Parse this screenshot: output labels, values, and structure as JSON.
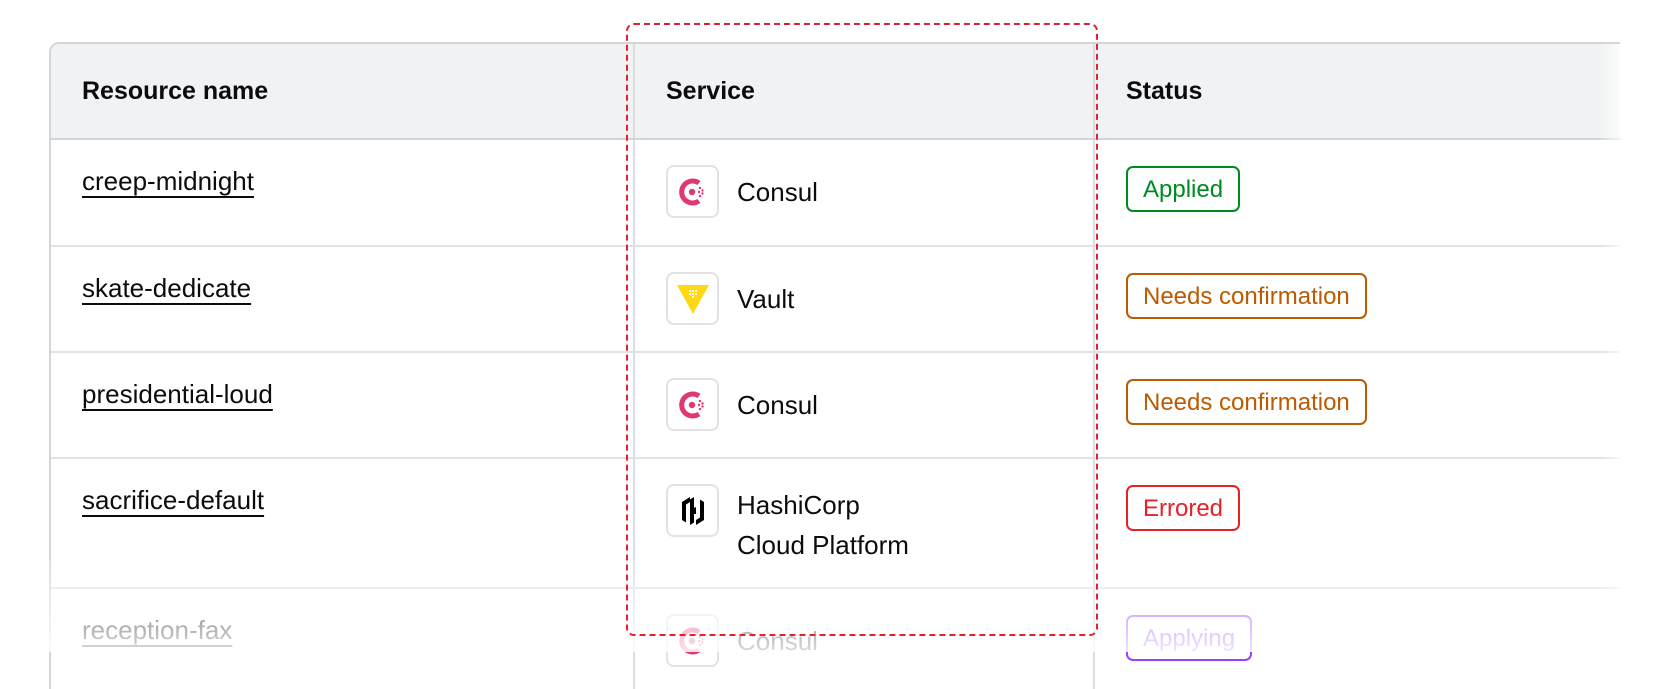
{
  "columns": [
    "Resource name",
    "Service",
    "Status"
  ],
  "rows": [
    {
      "name": "creep-midnight",
      "service": "Consul",
      "service_icon": "consul-icon",
      "status": "Applied",
      "status_color": "#008a22"
    },
    {
      "name": "skate-dedicate",
      "service": "Vault",
      "service_icon": "vault-icon",
      "status": "Needs confirmation",
      "status_color": "#bb5a00"
    },
    {
      "name": "presidential-loud",
      "service": "Consul",
      "service_icon": "consul-icon",
      "status": "Needs confirmation",
      "status_color": "#bb5a00"
    },
    {
      "name": "sacrifice-default",
      "service": "HashiCorp Cloud Platform",
      "service_line1": "HashiCorp",
      "service_line2": "Cloud Platform",
      "service_icon": "hcp-icon",
      "status": "Errored",
      "status_color": "#e52228"
    },
    {
      "name": "reception-fax",
      "service": "Consul",
      "service_icon": "consul-icon",
      "status": "Applying",
      "status_color": "#9a40ff"
    }
  ],
  "colors": {
    "consul": "#e03875",
    "vault": "#ffd814",
    "hcp": "#000000",
    "header_bg": "#f1f2f3",
    "focus_ring": "#e3202f"
  }
}
